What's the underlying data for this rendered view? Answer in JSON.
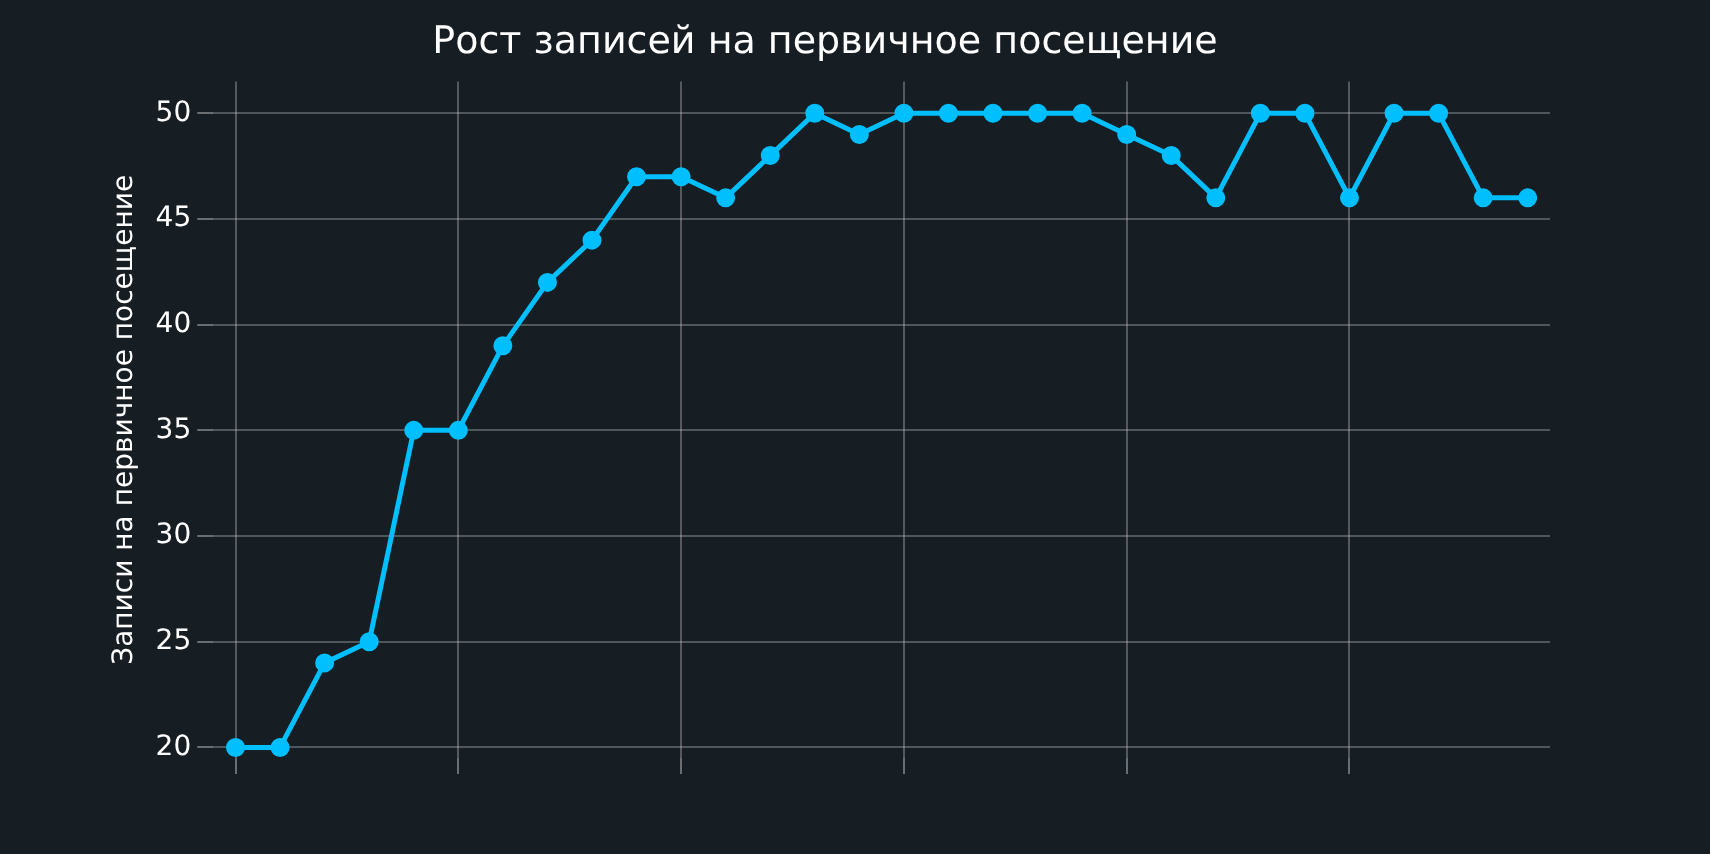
{
  "chart_data": {
    "type": "line",
    "title": "Рост записей на первичное посещение",
    "ylabel": "Записи на первичное посещение",
    "categories": [
      null,
      null,
      null,
      null,
      null,
      null,
      null,
      null,
      null,
      null,
      null,
      null,
      null,
      null,
      null,
      null,
      null,
      null,
      null,
      null,
      null,
      null,
      null,
      null,
      null,
      null,
      null,
      null,
      null,
      null
    ],
    "series": [
      {
        "color": "#00bfff",
        "values": [
          20,
          20,
          24,
          25,
          35,
          35,
          39,
          42,
          44,
          47,
          47,
          46,
          48,
          50,
          49,
          50,
          50,
          50,
          50,
          50,
          49,
          48,
          46,
          50,
          50,
          46,
          50,
          50,
          46,
          46
        ]
      }
    ],
    "ylim": [
      19.5,
      51.5
    ],
    "yticks": [
      20,
      25,
      30,
      35,
      40,
      45,
      50
    ],
    "grid": true,
    "tick_labels": "y",
    "marker": "circle",
    "line_style": "solid",
    "legend": false
  }
}
